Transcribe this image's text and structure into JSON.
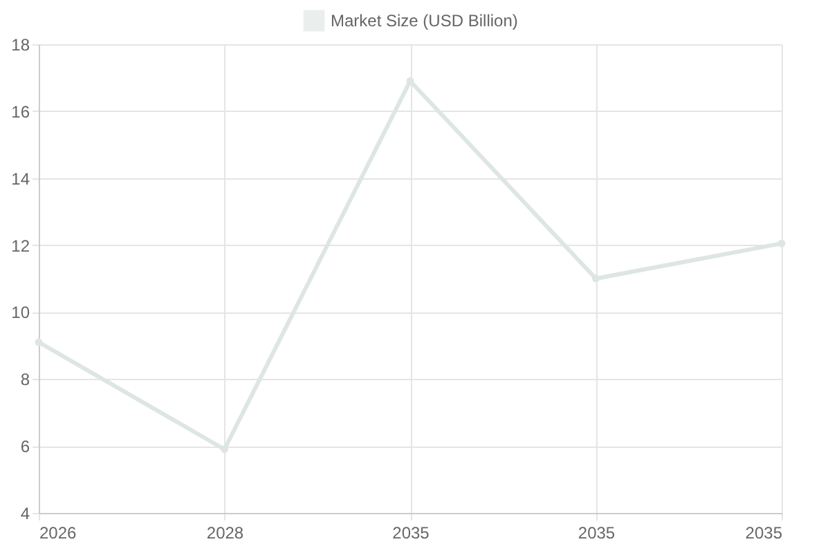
{
  "chart_data": {
    "type": "line",
    "categories": [
      "2026",
      "2028",
      "2035",
      "2035",
      "2035"
    ],
    "series": [
      {
        "name": "Market Size (USD Billion)",
        "color": "#dde6e3",
        "values": [
          9.1,
          5.9,
          16.9,
          11.0,
          12.05
        ]
      }
    ],
    "ylim": [
      4,
      18
    ],
    "yticks": [
      4,
      6,
      8,
      10,
      12,
      14,
      16,
      18
    ],
    "grid": true,
    "legend": "top",
    "marker": "circle",
    "line_style": "solid"
  }
}
